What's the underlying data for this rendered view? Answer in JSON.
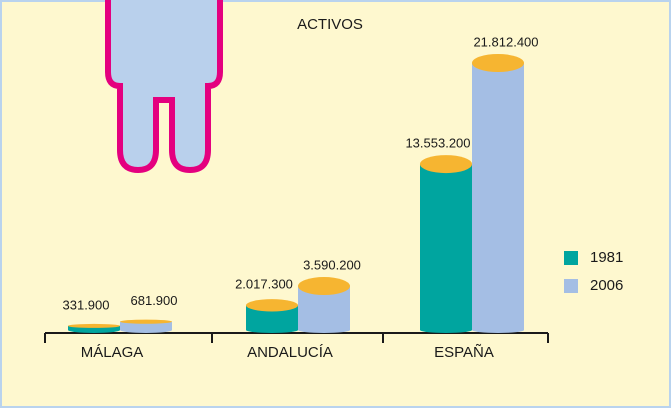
{
  "chart_data": {
    "type": "bar",
    "title": "ACTIVOS",
    "categories": [
      "MÁLAGA",
      "ANDALUCÍA",
      "ESPAÑA"
    ],
    "series": [
      {
        "name": "1981",
        "color": "#00a59f",
        "values": [
          331900,
          2017300,
          13553200
        ],
        "value_labels": [
          "331.900",
          "2.017.300",
          "13.553.200"
        ]
      },
      {
        "name": "2006",
        "color": "#a4bee4",
        "values": [
          681900,
          3590200,
          21812400
        ],
        "value_labels": [
          "681.900",
          "3.590.200",
          "21.812.400"
        ]
      }
    ],
    "top_color": "#f6b531"
  }
}
